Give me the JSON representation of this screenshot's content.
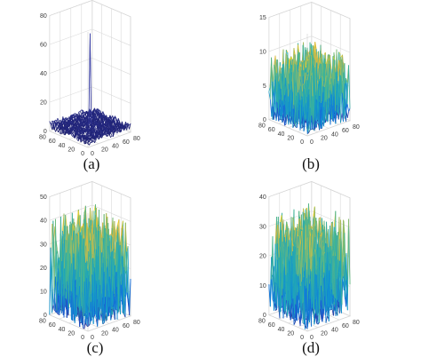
{
  "chart_data": [
    {
      "type": "surface",
      "caption": "(a)",
      "x": [
        0,
        20,
        40,
        60,
        80
      ],
      "y": [
        0,
        20,
        40,
        60,
        80
      ],
      "zlim": [
        0,
        80
      ],
      "z_ticks": [
        "0",
        "20",
        "40",
        "60",
        "80"
      ],
      "x_ticks": [
        "0",
        "20",
        "40",
        "60",
        "80"
      ],
      "y_ticks": [
        "0",
        "20",
        "40",
        "60",
        "80"
      ],
      "base_level": 4,
      "noise_amplitude": 3,
      "peak": {
        "x": 40,
        "y": 40,
        "z": 68
      },
      "colormap": "dark-blue",
      "seed": 11,
      "grid": true
    },
    {
      "type": "surface",
      "caption": "(b)",
      "x": [
        0,
        20,
        40,
        60,
        80
      ],
      "y": [
        0,
        20,
        40,
        60,
        80
      ],
      "zlim": [
        0,
        15
      ],
      "z_ticks": [
        "0",
        "5",
        "10",
        "15"
      ],
      "x_ticks": [
        "0",
        "20",
        "40",
        "60",
        "80"
      ],
      "y_ticks": [
        "0",
        "20",
        "40",
        "60",
        "80"
      ],
      "base_level": 0,
      "noise_amplitude": 10,
      "peak": null,
      "colormap": "parula",
      "seed": 23,
      "grid": true
    },
    {
      "type": "surface",
      "caption": "(c)",
      "x": [
        0,
        20,
        40,
        60,
        80
      ],
      "y": [
        0,
        20,
        40,
        60,
        80
      ],
      "zlim": [
        0,
        50
      ],
      "z_ticks": [
        "0",
        "10",
        "20",
        "30",
        "40",
        "50"
      ],
      "x_ticks": [
        "0",
        "20",
        "40",
        "60",
        "80"
      ],
      "y_ticks": [
        "0",
        "20",
        "40",
        "60",
        "80"
      ],
      "base_level": 0,
      "noise_amplitude": 42,
      "peak": null,
      "colormap": "parula",
      "seed": 37,
      "grid": true
    },
    {
      "type": "surface",
      "caption": "(d)",
      "x": [
        0,
        20,
        40,
        60,
        80
      ],
      "y": [
        0,
        20,
        40,
        60,
        80
      ],
      "zlim": [
        0,
        40
      ],
      "z_ticks": [
        "0",
        "10",
        "20",
        "30",
        "40"
      ],
      "x_ticks": [
        "0",
        "20",
        "40",
        "60",
        "80"
      ],
      "y_ticks": [
        "0",
        "20",
        "40",
        "60",
        "80"
      ],
      "base_level": 0,
      "noise_amplitude": 34,
      "peak": null,
      "colormap": "parula",
      "seed": 53,
      "grid": true
    }
  ]
}
